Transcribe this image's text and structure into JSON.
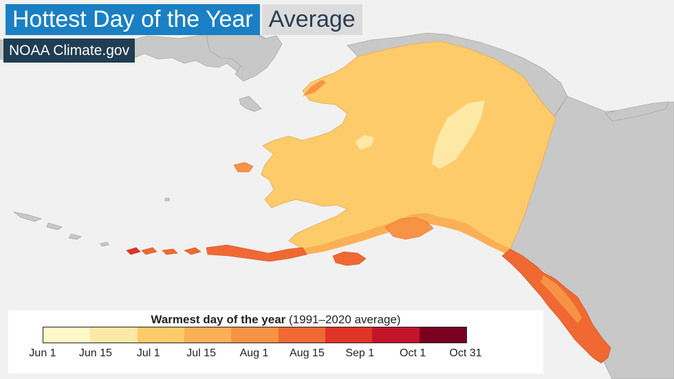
{
  "header": {
    "title": "Hottest Day of the Year",
    "subtitle": "Average",
    "credit": "NOAA Climate.gov"
  },
  "legend": {
    "title_bold": "Warmest day of the year",
    "title_rest": " (1991–2020 average)",
    "ticks": [
      "Jun 1",
      "Jun 15",
      "Jul 1",
      "Jul 15",
      "Aug 1",
      "Aug 15",
      "Sep 1",
      "Oct 1",
      "Oct 31"
    ],
    "colors": [
      "#fff8c8",
      "#fde8a6",
      "#fdcb6a",
      "#fcb055",
      "#f79344",
      "#f06932",
      "#e03427",
      "#c4142a",
      "#7a0020"
    ]
  },
  "map_colors": {
    "background": "#f1f1f1",
    "neighbor_land": "#c8c8c8",
    "alaska_main": "#fdcb6a",
    "alaska_cool": "#fde8a6",
    "coast_warm": "#fcb055",
    "coast_hot": "#f79344",
    "coast_hottest": "#f06932"
  }
}
